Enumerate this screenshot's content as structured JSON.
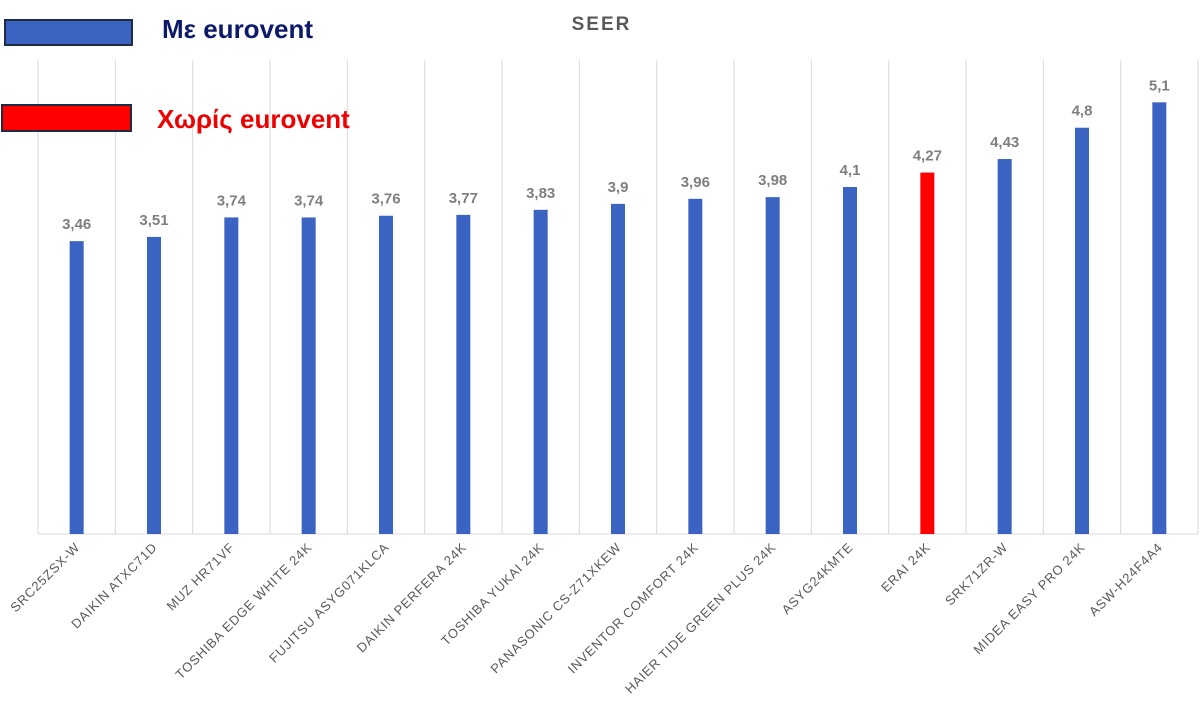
{
  "legend": [
    {
      "label": "Με eurovent",
      "color": "#3a63c2",
      "text_color": "#0d1a6b"
    },
    {
      "label": "Χωρίς eurovent",
      "color": "#ff0000",
      "text_color": "#ee0000"
    }
  ],
  "chart_data": {
    "type": "bar",
    "title": "SEER",
    "xlabel": "",
    "ylabel": "",
    "ylim": [
      0,
      5.6
    ],
    "grid": "vertical",
    "categories": [
      "SRC25ZSX-W",
      "DAIKIN ATXC71D",
      "MUZ HR71VF",
      "TOSHIBA EDGE WHITE 24K",
      "FUJITSU ASYG071KLCA",
      "DAIKIN PERFERA 24K",
      "TOSHIBA YUKAI 24K",
      "PANASONIC CS-Z71XKEW",
      "INVENTOR COMFORT 24K",
      "HAIER TIDE GREEN PLUS 24K",
      "ASYG24KMTE",
      "ERAI 24K",
      "SRK71ZR-W",
      "MIDEA EASY PRO 24K",
      "ASW-H24F4A4"
    ],
    "values": [
      3.46,
      3.51,
      3.74,
      3.74,
      3.76,
      3.77,
      3.83,
      3.9,
      3.96,
      3.98,
      4.1,
      4.27,
      4.43,
      4.8,
      5.1
    ],
    "data_labels": [
      "3,46",
      "3,51",
      "3,74",
      "3,74",
      "3,76",
      "3,77",
      "3,83",
      "3,9",
      "3,96",
      "3,98",
      "4,1",
      "4,27",
      "4,43",
      "4,8",
      "5,1"
    ],
    "bar_colors": [
      "#3a63c2",
      "#3a63c2",
      "#3a63c2",
      "#3a63c2",
      "#3a63c2",
      "#3a63c2",
      "#3a63c2",
      "#3a63c2",
      "#3a63c2",
      "#3a63c2",
      "#3a63c2",
      "#ff0000",
      "#3a63c2",
      "#3a63c2",
      "#3a63c2"
    ],
    "label_color": "#7f7f7f",
    "grid_color": "#d9d9d9"
  }
}
